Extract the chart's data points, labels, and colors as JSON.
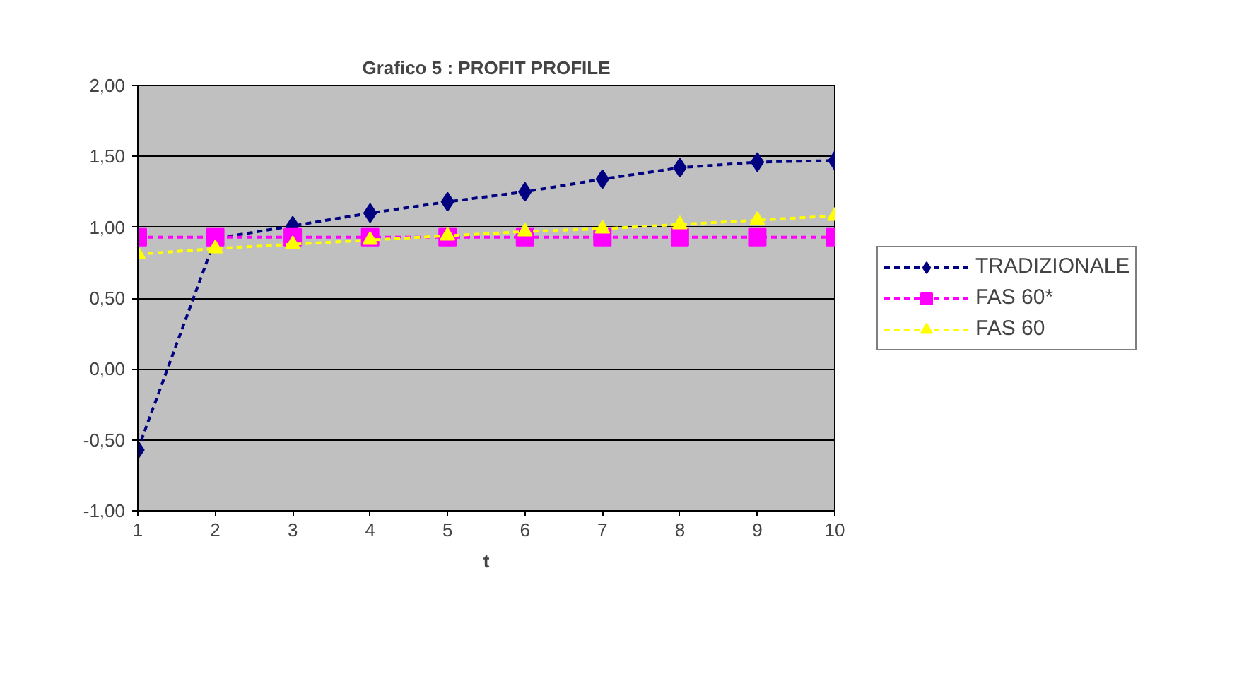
{
  "chart_data": {
    "type": "line",
    "title": "Grafico 5 : PROFIT PROFILE",
    "xlabel": "t",
    "x": [
      1,
      2,
      3,
      4,
      5,
      6,
      7,
      8,
      9,
      10
    ],
    "xlim": [
      1,
      10
    ],
    "xticks": [
      1,
      2,
      3,
      4,
      5,
      6,
      7,
      8,
      9,
      10
    ],
    "ylim": [
      -1,
      2
    ],
    "yticks": [
      {
        "value": -1,
        "label": "-1,00"
      },
      {
        "value": -0.5,
        "label": "-0,50"
      },
      {
        "value": 0,
        "label": "0,00"
      },
      {
        "value": 0.5,
        "label": "0,50"
      },
      {
        "value": 1,
        "label": "1,00"
      },
      {
        "value": 1.5,
        "label": "1,50"
      },
      {
        "value": 2,
        "label": "2,00"
      }
    ],
    "grid": "y",
    "legend": "right",
    "line_style": "dashed",
    "series": [
      {
        "name": "TRADIZIONALE",
        "color": "#000080",
        "marker": "diamond",
        "values": [
          -0.57,
          0.92,
          1.01,
          1.1,
          1.18,
          1.25,
          1.34,
          1.42,
          1.46,
          1.47
        ]
      },
      {
        "name": "FAS 60*",
        "color": "#ff00ff",
        "marker": "square",
        "values": [
          0.93,
          0.93,
          0.93,
          0.93,
          0.93,
          0.93,
          0.93,
          0.93,
          0.93,
          0.93
        ]
      },
      {
        "name": "FAS 60",
        "color": "#ffff00",
        "marker": "triangle",
        "values": [
          0.81,
          0.85,
          0.88,
          0.91,
          0.94,
          0.97,
          0.99,
          1.02,
          1.05,
          1.08
        ]
      }
    ]
  }
}
